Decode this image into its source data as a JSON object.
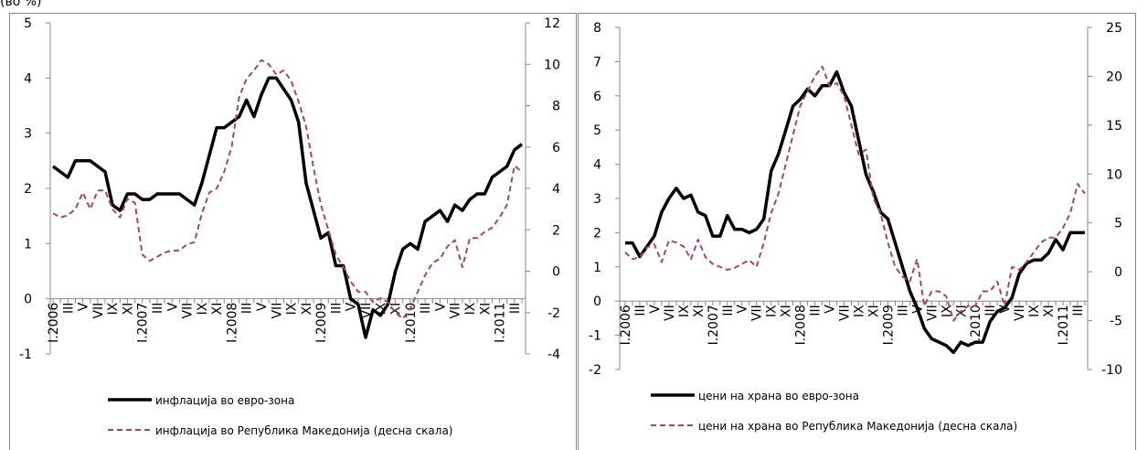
{
  "unit": "(во %)",
  "chart_data": [
    {
      "type": "line",
      "categories": [
        "I.2006",
        null,
        "III",
        null,
        "V",
        null,
        "VII",
        null,
        "IX",
        null,
        "XI",
        null,
        "I.2007",
        null,
        "III",
        null,
        "V",
        null,
        "VII",
        null,
        "IX",
        null,
        "XI",
        null,
        "I.2008",
        null,
        "III",
        null,
        "V",
        null,
        "VII",
        null,
        "IX",
        null,
        "XI",
        null,
        "I.2009",
        null,
        "III",
        null,
        "V",
        null,
        "VII",
        null,
        "IX",
        null,
        "XI",
        null,
        "I.2010",
        null,
        "III",
        null,
        "V",
        null,
        "VII",
        null,
        "IX",
        null,
        "XI",
        null,
        "I.2011",
        null,
        "III",
        null
      ],
      "ylim": [
        -1,
        5
      ],
      "yticks": [
        -1,
        0,
        1,
        2,
        3,
        4,
        5
      ],
      "y2lim": [
        -4,
        12
      ],
      "y2ticks": [
        -4,
        -2,
        0,
        2,
        4,
        6,
        8,
        10,
        12
      ],
      "series": [
        {
          "name": "инфлација во евро-зона",
          "color": "#000000",
          "style": "solid",
          "values": [
            2.4,
            2.3,
            2.2,
            2.5,
            2.5,
            2.5,
            2.4,
            2.3,
            1.7,
            1.6,
            1.9,
            1.9,
            1.8,
            1.8,
            1.9,
            1.9,
            1.9,
            1.9,
            1.8,
            1.7,
            2.1,
            2.6,
            3.1,
            3.1,
            3.2,
            3.3,
            3.6,
            3.3,
            3.7,
            4.0,
            4.0,
            3.8,
            3.6,
            3.2,
            2.1,
            1.6,
            1.1,
            1.2,
            0.6,
            0.6,
            0.0,
            -0.1,
            -0.7,
            -0.2,
            -0.3,
            -0.1,
            0.5,
            0.9,
            1.0,
            0.9,
            1.4,
            1.5,
            1.6,
            1.4,
            1.7,
            1.6,
            1.8,
            1.9,
            1.9,
            2.2,
            2.3,
            2.4,
            2.7,
            2.8
          ]
        },
        {
          "name": "инфлација во Република Македонија (десна скала)",
          "color": "#a3456f",
          "style": "dashed",
          "axis": "y2",
          "values": [
            2.8,
            2.6,
            2.7,
            3.0,
            3.8,
            3.0,
            3.9,
            3.9,
            3.0,
            2.6,
            3.5,
            3.3,
            0.8,
            0.5,
            0.7,
            0.9,
            1.0,
            1.0,
            1.3,
            1.4,
            2.8,
            3.8,
            4.0,
            4.8,
            6.0,
            8.4,
            9.3,
            9.7,
            10.2,
            10.0,
            9.5,
            9.7,
            9.2,
            8.2,
            7.0,
            5.0,
            3.2,
            2.0,
            0.8,
            0.2,
            -0.5,
            -1.0,
            -1.0,
            -1.5,
            -1.3,
            -1.5,
            -2.0,
            -2.3,
            -1.8,
            -1.0,
            -0.2,
            0.4,
            0.6,
            1.2,
            1.5,
            0.2,
            1.6,
            1.6,
            1.9,
            2.1,
            2.6,
            3.2,
            5.1,
            4.8
          ]
        }
      ]
    },
    {
      "type": "line",
      "categories": [
        "I.2006",
        null,
        "III",
        null,
        "V",
        null,
        "VII",
        null,
        "IX",
        null,
        "XI",
        null,
        "I.2007",
        null,
        "III",
        null,
        "V",
        null,
        "VII",
        null,
        "IX",
        null,
        "XI",
        null,
        "I.2008",
        null,
        "III",
        null,
        "V",
        null,
        "VII",
        null,
        "IX",
        null,
        "XI",
        null,
        "I.2009",
        null,
        "III",
        null,
        "V",
        null,
        "VII",
        null,
        "IX",
        null,
        "XI",
        null,
        "I.2010",
        null,
        "III",
        null,
        "V",
        null,
        "VII",
        null,
        "IX",
        null,
        "XI",
        null,
        "I.2011",
        null,
        "III",
        null
      ],
      "ylim": [
        -2,
        8
      ],
      "yticks": [
        -2,
        -1,
        0,
        1,
        2,
        3,
        4,
        5,
        6,
        7,
        8
      ],
      "y2lim": [
        -10,
        25
      ],
      "y2ticks": [
        -10,
        -5,
        0,
        5,
        10,
        15,
        20,
        25
      ],
      "series": [
        {
          "name": "цени на храна во евро-зона",
          "color": "#000000",
          "style": "solid",
          "values": [
            1.7,
            1.7,
            1.3,
            1.6,
            1.9,
            2.6,
            3.0,
            3.3,
            3.0,
            3.1,
            2.6,
            2.5,
            1.9,
            1.9,
            2.5,
            2.1,
            2.1,
            2.0,
            2.1,
            2.4,
            3.8,
            4.3,
            5.0,
            5.7,
            5.9,
            6.2,
            6.0,
            6.3,
            6.3,
            6.7,
            6.1,
            5.7,
            4.7,
            3.7,
            3.2,
            2.6,
            2.4,
            1.7,
            1.0,
            0.3,
            -0.2,
            -0.8,
            -1.1,
            -1.2,
            -1.3,
            -1.5,
            -1.2,
            -1.3,
            -1.2,
            -1.2,
            -0.6,
            -0.3,
            -0.2,
            0.1,
            0.8,
            1.1,
            1.2,
            1.2,
            1.4,
            1.8,
            1.5,
            2.0,
            2.0,
            2.0
          ]
        },
        {
          "name": "цени на храна во Република Македонија (десна скала)",
          "color": "#a3456f",
          "style": "dashed",
          "axis": "y2",
          "values": [
            2.0,
            1.3,
            1.5,
            2.5,
            2.8,
            1.0,
            3.2,
            3.0,
            2.6,
            1.3,
            3.3,
            1.5,
            0.8,
            0.5,
            0.2,
            0.4,
            0.8,
            1.2,
            0.5,
            3.0,
            6.0,
            8.0,
            11.0,
            14.0,
            17.0,
            18.5,
            20.0,
            21.0,
            19.0,
            19.3,
            18.0,
            15.0,
            12.0,
            12.5,
            7.5,
            6.0,
            3.0,
            0.5,
            -0.5,
            -1.0,
            1.3,
            -3.5,
            -2.0,
            -2.0,
            -2.5,
            -5.0,
            -4.0,
            -3.5,
            -3.5,
            -2.0,
            -2.0,
            -1.0,
            -3.5,
            0.5,
            0.2,
            1.0,
            2.0,
            3.0,
            3.5,
            3.5,
            4.5,
            6.0,
            9.0,
            8.0
          ]
        }
      ]
    }
  ]
}
